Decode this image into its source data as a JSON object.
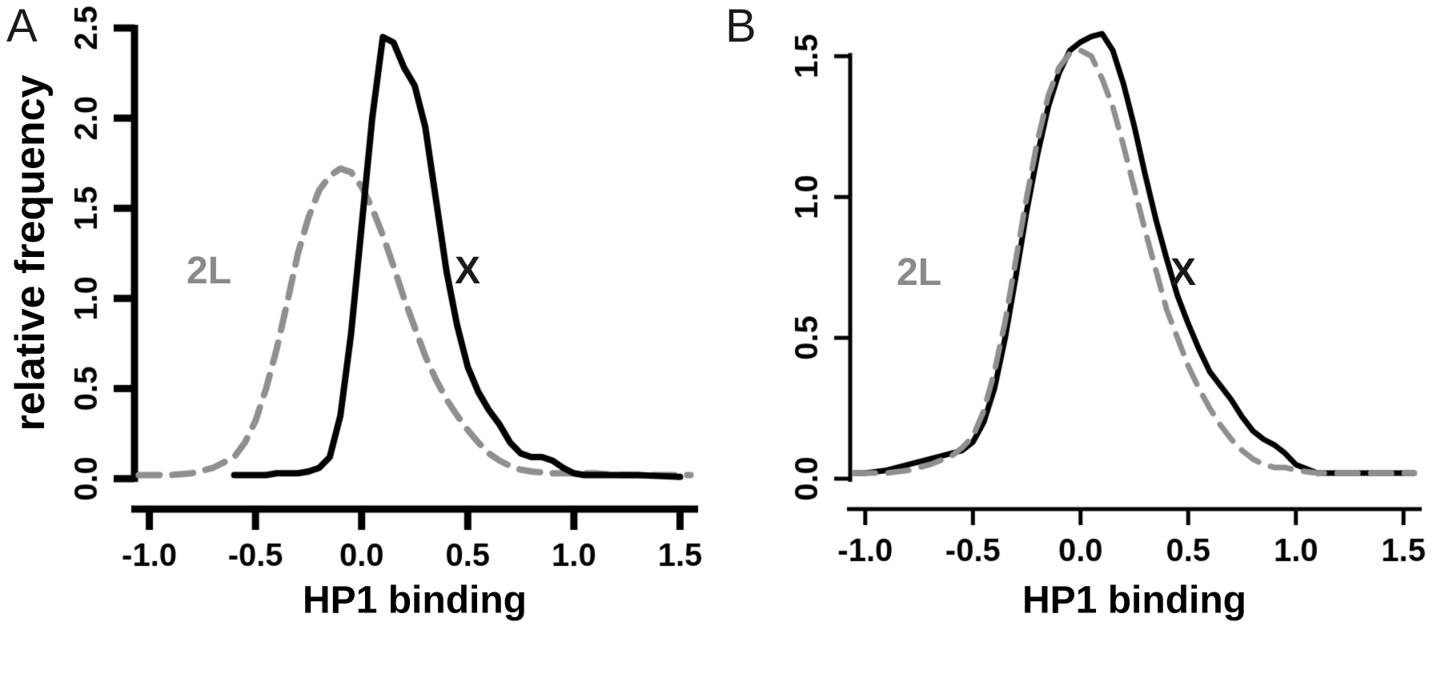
{
  "figure": {
    "background": "#ffffff",
    "description": "Two-panel density plot figure comparing HP1 binding distributions on chromosomes X and 2L"
  },
  "chart_data": [
    {
      "type": "line",
      "panel_label": "A",
      "title": "",
      "xlabel": "HP1 binding",
      "ylabel": "relative frequency",
      "xlim": [
        -1.07,
        1.57
      ],
      "ylim": [
        0,
        2.5
      ],
      "xticks": [
        -1.0,
        -0.5,
        0.0,
        0.5,
        1.0,
        1.5
      ],
      "xtick_labels": [
        "-1.0",
        "-0.5",
        "0.0",
        "0.5",
        "1.0",
        "1.5"
      ],
      "yticks": [
        0.0,
        0.5,
        1.0,
        1.5,
        2.0,
        2.5
      ],
      "ytick_labels": [
        "0.0",
        "0.5",
        "1.0",
        "1.5",
        "2.0",
        "2.5"
      ],
      "axis_color": "#000000",
      "grid": false,
      "legend_position": "none",
      "annotations": [
        {
          "text": "2L",
          "x": -0.72,
          "y": 1.15,
          "color": "#8a8a8a"
        },
        {
          "text": "X",
          "x": 0.5,
          "y": 1.15,
          "color": "#1a1a1a"
        }
      ],
      "series": [
        {
          "name": "2L",
          "color": "#8f8f8f",
          "linestyle": "dashed",
          "x": [
            -1.05,
            -1.0,
            -0.9,
            -0.8,
            -0.7,
            -0.6,
            -0.55,
            -0.5,
            -0.45,
            -0.4,
            -0.35,
            -0.3,
            -0.25,
            -0.2,
            -0.15,
            -0.1,
            -0.05,
            0.0,
            0.05,
            0.1,
            0.15,
            0.2,
            0.25,
            0.3,
            0.35,
            0.4,
            0.45,
            0.5,
            0.55,
            0.6,
            0.65,
            0.7,
            0.75,
            0.8,
            0.9,
            1.0,
            1.1,
            1.2,
            1.3,
            1.4,
            1.5,
            1.55
          ],
          "y": [
            0.02,
            0.02,
            0.02,
            0.03,
            0.06,
            0.12,
            0.2,
            0.32,
            0.5,
            0.72,
            0.98,
            1.25,
            1.45,
            1.6,
            1.68,
            1.72,
            1.7,
            1.62,
            1.5,
            1.35,
            1.18,
            1.0,
            0.84,
            0.68,
            0.55,
            0.44,
            0.35,
            0.27,
            0.2,
            0.14,
            0.1,
            0.07,
            0.05,
            0.04,
            0.03,
            0.03,
            0.03,
            0.02,
            0.02,
            0.02,
            0.02,
            0.02
          ]
        },
        {
          "name": "X",
          "color": "#000000",
          "linestyle": "solid",
          "x": [
            -0.6,
            -0.55,
            -0.5,
            -0.45,
            -0.4,
            -0.35,
            -0.3,
            -0.25,
            -0.2,
            -0.15,
            -0.1,
            -0.05,
            0.0,
            0.05,
            0.1,
            0.15,
            0.2,
            0.25,
            0.3,
            0.35,
            0.4,
            0.45,
            0.5,
            0.55,
            0.6,
            0.65,
            0.7,
            0.75,
            0.8,
            0.85,
            0.9,
            0.95,
            1.0,
            1.05,
            1.1,
            1.2,
            1.3,
            1.4,
            1.5
          ],
          "y": [
            0.02,
            0.02,
            0.02,
            0.02,
            0.03,
            0.03,
            0.03,
            0.04,
            0.06,
            0.12,
            0.35,
            0.8,
            1.4,
            2.0,
            2.45,
            2.42,
            2.28,
            2.18,
            1.95,
            1.55,
            1.15,
            0.85,
            0.62,
            0.48,
            0.38,
            0.3,
            0.2,
            0.14,
            0.12,
            0.12,
            0.1,
            0.06,
            0.03,
            0.02,
            0.02,
            0.02,
            0.02,
            0.015,
            0.01
          ]
        }
      ]
    },
    {
      "type": "line",
      "panel_label": "B",
      "title": "",
      "xlabel": "HP1 binding",
      "ylabel": "",
      "xlim": [
        -1.07,
        1.57
      ],
      "ylim": [
        0,
        1.6
      ],
      "xticks": [
        -1.0,
        -0.5,
        0.0,
        0.5,
        1.0,
        1.5
      ],
      "xtick_labels": [
        "-1.0",
        "-0.5",
        "0.0",
        "0.5",
        "1.0",
        "1.5"
      ],
      "yticks": [
        0.0,
        0.5,
        1.0,
        1.5
      ],
      "ytick_labels": [
        "0.0",
        "0.5",
        "1.0",
        "1.5"
      ],
      "axis_color": "#000000",
      "grid": false,
      "legend_position": "none",
      "annotations": [
        {
          "text": "2L",
          "x": -0.75,
          "y": 0.73,
          "color": "#8a8a8a"
        },
        {
          "text": "X",
          "x": 0.55,
          "y": 0.73,
          "color": "#1a1a1a"
        }
      ],
      "series": [
        {
          "name": "X",
          "color": "#000000",
          "linestyle": "solid",
          "x": [
            -1.05,
            -1.0,
            -0.9,
            -0.8,
            -0.7,
            -0.6,
            -0.55,
            -0.5,
            -0.45,
            -0.4,
            -0.35,
            -0.3,
            -0.25,
            -0.2,
            -0.15,
            -0.1,
            -0.05,
            0.0,
            0.05,
            0.1,
            0.15,
            0.2,
            0.25,
            0.3,
            0.35,
            0.4,
            0.45,
            0.5,
            0.55,
            0.6,
            0.65,
            0.7,
            0.75,
            0.8,
            0.85,
            0.9,
            0.95,
            1.0,
            1.1,
            1.2,
            1.3,
            1.4,
            1.5,
            1.55
          ],
          "y": [
            0.02,
            0.02,
            0.03,
            0.05,
            0.07,
            0.09,
            0.1,
            0.13,
            0.2,
            0.32,
            0.5,
            0.72,
            0.95,
            1.15,
            1.32,
            1.44,
            1.52,
            1.55,
            1.57,
            1.58,
            1.52,
            1.4,
            1.25,
            1.08,
            0.92,
            0.78,
            0.65,
            0.55,
            0.46,
            0.38,
            0.33,
            0.28,
            0.22,
            0.17,
            0.14,
            0.12,
            0.09,
            0.05,
            0.02,
            0.02,
            0.02,
            0.02,
            0.02,
            0.02
          ]
        },
        {
          "name": "2L",
          "color": "#8f8f8f",
          "linestyle": "dashed",
          "x": [
            -1.05,
            -1.0,
            -0.9,
            -0.8,
            -0.7,
            -0.6,
            -0.55,
            -0.5,
            -0.45,
            -0.4,
            -0.35,
            -0.3,
            -0.25,
            -0.2,
            -0.15,
            -0.1,
            -0.05,
            0.0,
            0.05,
            0.1,
            0.15,
            0.2,
            0.25,
            0.3,
            0.35,
            0.4,
            0.45,
            0.5,
            0.55,
            0.6,
            0.65,
            0.7,
            0.75,
            0.8,
            0.85,
            0.9,
            0.95,
            1.0,
            1.1,
            1.2,
            1.3,
            1.4,
            1.5,
            1.55
          ],
          "y": [
            0.02,
            0.02,
            0.02,
            0.03,
            0.05,
            0.08,
            0.11,
            0.15,
            0.24,
            0.38,
            0.56,
            0.78,
            1.0,
            1.2,
            1.36,
            1.46,
            1.51,
            1.52,
            1.5,
            1.42,
            1.32,
            1.18,
            1.03,
            0.88,
            0.74,
            0.6,
            0.5,
            0.4,
            0.32,
            0.25,
            0.19,
            0.14,
            0.1,
            0.07,
            0.05,
            0.04,
            0.04,
            0.03,
            0.02,
            0.02,
            0.02,
            0.02,
            0.02,
            0.02
          ]
        }
      ]
    }
  ]
}
